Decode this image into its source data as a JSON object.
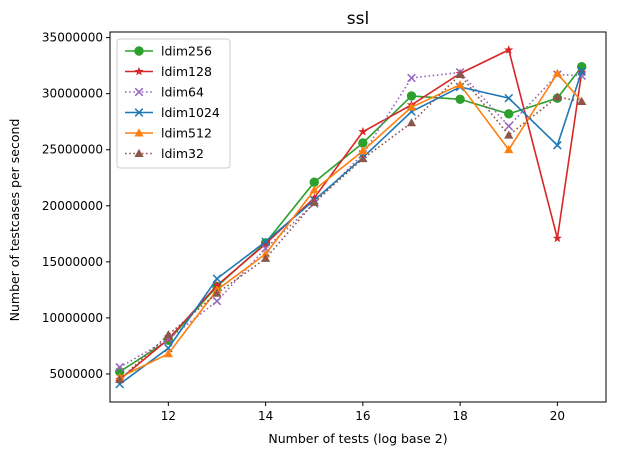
{
  "chart_data": {
    "type": "line",
    "title": "ssl",
    "xlabel": "Number of tests (log base 2)",
    "ylabel": "Number of testcases per second",
    "xlim": [
      10.8,
      21.0
    ],
    "ylim": [
      2500000,
      35500000
    ],
    "xticks": [
      12,
      14,
      16,
      18,
      20
    ],
    "yticks": [
      5000000,
      10000000,
      15000000,
      20000000,
      25000000,
      30000000,
      35000000
    ],
    "legend_position": "upper-left",
    "grid": false,
    "x": [
      11,
      12,
      13,
      14,
      15,
      16,
      17,
      18,
      19,
      20,
      20.5
    ],
    "series": [
      {
        "name": "ldim256",
        "color": "#2ca02c",
        "marker": "circle",
        "linestyle": "solid",
        "values": [
          5200000,
          8000000,
          12800000,
          16700000,
          22100000,
          25600000,
          29800000,
          29500000,
          28200000,
          29600000,
          32400000
        ]
      },
      {
        "name": "ldim128",
        "color": "#d62728",
        "marker": "star",
        "linestyle": "solid",
        "values": [
          4500000,
          8100000,
          12900000,
          16600000,
          20700000,
          26600000,
          29000000,
          31800000,
          33900000,
          17100000,
          31900000
        ]
      },
      {
        "name": "ldim64",
        "color": "#9467bd",
        "marker": "x",
        "linestyle": "dotted",
        "values": [
          5600000,
          8100000,
          11500000,
          16200000,
          20200000,
          24600000,
          31400000,
          31900000,
          27100000,
          31700000,
          31600000
        ]
      },
      {
        "name": "ldim1024",
        "color": "#1f77b4",
        "marker": "x",
        "linestyle": "solid",
        "values": [
          4100000,
          7300000,
          13500000,
          16800000,
          20500000,
          24300000,
          28400000,
          30600000,
          29600000,
          25400000,
          32000000
        ]
      },
      {
        "name": "ldim512",
        "color": "#ff7f0e",
        "marker": "triangle",
        "linestyle": "solid",
        "values": [
          4700000,
          6800000,
          12500000,
          15700000,
          21400000,
          24900000,
          28800000,
          30800000,
          25000000,
          31800000,
          29300000
        ]
      },
      {
        "name": "ldim32",
        "color": "#8c564b",
        "marker": "triangle",
        "linestyle": "dotted",
        "values": [
          4500000,
          8500000,
          12200000,
          15300000,
          20300000,
          24200000,
          27400000,
          31700000,
          26300000,
          29700000,
          29300000
        ]
      }
    ]
  }
}
